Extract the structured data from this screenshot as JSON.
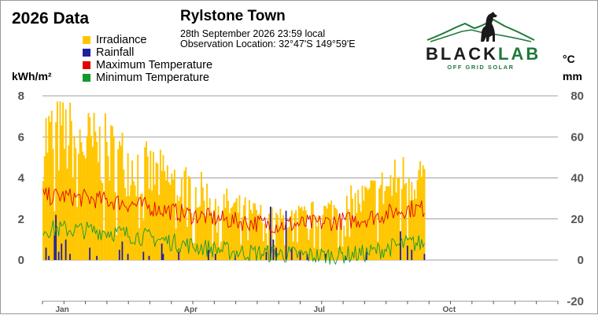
{
  "header": {
    "year_title": "2026 Data",
    "station": "Rylstone Town",
    "date_line": "28th September 2026  23:59 local",
    "location_line": "Observation Location:   32°47'S 149°59'E"
  },
  "logo": {
    "word_black": "BLACK",
    "word_green": "LAB",
    "tagline": "OFF GRID SOLAR"
  },
  "units": {
    "left": "kWh/m²",
    "right_temp": "°C",
    "right_rain": "mm"
  },
  "colors": {
    "irradiance": "#ffc600",
    "rainfall": "#1f1fa0",
    "max_temp": "#e30000",
    "min_temp": "#14992e",
    "grid": "#7f7f7f",
    "logo_green": "#1f7a3a"
  },
  "chart_data": {
    "type": "bar",
    "x_unit": "day_of_year",
    "days_recorded": 271,
    "series": [
      {
        "name": "Irradiance",
        "kind": "bar",
        "axis": "left",
        "unit": "kWh/m²",
        "monthly_avg": [
          7.0,
          6.2,
          5.0,
          4.0,
          2.9,
          2.2,
          2.6,
          3.4,
          4.8
        ]
      },
      {
        "name": "Rainfall",
        "kind": "bar",
        "axis": "right",
        "unit": "mm",
        "events": [
          [
            2,
            6
          ],
          [
            4,
            2
          ],
          [
            8,
            12
          ],
          [
            9,
            22
          ],
          [
            11,
            4
          ],
          [
            13,
            8
          ],
          [
            16,
            10
          ],
          [
            19,
            3
          ],
          [
            33,
            6
          ],
          [
            38,
            2
          ],
          [
            54,
            5
          ],
          [
            56,
            9
          ],
          [
            60,
            3
          ],
          [
            71,
            4
          ],
          [
            75,
            2
          ],
          [
            84,
            8
          ],
          [
            85,
            3
          ],
          [
            96,
            4
          ],
          [
            117,
            5
          ],
          [
            122,
            3
          ],
          [
            136,
            2
          ],
          [
            158,
            4
          ],
          [
            161,
            26
          ],
          [
            163,
            10
          ],
          [
            165,
            6
          ],
          [
            172,
            24
          ],
          [
            176,
            6
          ],
          [
            182,
            4
          ],
          [
            187,
            3
          ],
          [
            200,
            3
          ],
          [
            214,
            2
          ],
          [
            229,
            4
          ],
          [
            253,
            14
          ],
          [
            258,
            7
          ],
          [
            261,
            5
          ],
          [
            270,
            3
          ]
        ]
      },
      {
        "name": "Maximum Temperature",
        "kind": "line",
        "axis": "right",
        "unit": "°C",
        "monthly_avg": [
          31,
          29,
          26,
          22,
          19,
          17,
          18,
          20,
          25
        ]
      },
      {
        "name": "Minimum Temperature",
        "kind": "line",
        "axis": "right",
        "unit": "°C",
        "monthly_avg": [
          15,
          14,
          11,
          7,
          4,
          3,
          2,
          3,
          8
        ]
      }
    ],
    "left_axis": {
      "label": "kWh/m²",
      "ticks": [
        "0",
        "2",
        "4",
        "6",
        "8"
      ],
      "range": [
        0,
        8
      ]
    },
    "right_axis": {
      "label": "°C mm",
      "ticks": [
        "-20",
        "0",
        "20",
        "40",
        "60",
        "80"
      ],
      "range": [
        -20,
        80
      ]
    },
    "x_axis": {
      "tick_labels": [
        "Jan",
        "Apr",
        "Jul",
        "Oct"
      ],
      "label_days": [
        14,
        105,
        196,
        288
      ]
    },
    "grid": true,
    "legend_position": "top-left"
  }
}
